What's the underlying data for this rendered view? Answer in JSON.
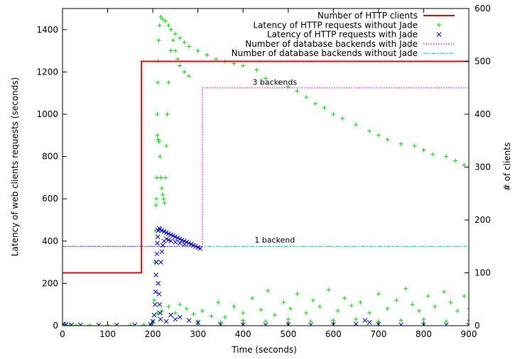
{
  "chart_data": {
    "type": "line",
    "title": "",
    "xlabel": "Time (seconds)",
    "ylabel": "Latency of web clients requests (seconds)",
    "y2label": "# of clients",
    "xlim": [
      0,
      900
    ],
    "ylim": [
      0,
      1500
    ],
    "y2lim": [
      0,
      600
    ],
    "xticks": [
      0,
      100,
      200,
      300,
      400,
      500,
      600,
      700,
      800,
      900
    ],
    "yticks": [
      0,
      200,
      400,
      600,
      800,
      1000,
      1200,
      1400
    ],
    "y2ticks": [
      0,
      100,
      200,
      300,
      400,
      500,
      600
    ],
    "grid": false,
    "legend_position": "top-right",
    "colors": {
      "clients": "#ff0000",
      "latency_without_jade": "#00dd00",
      "latency_with_jade": "#0000cc",
      "backends_with_jade": "#ee00ee",
      "backends_without_jade": "#00cccc"
    },
    "series": [
      {
        "name": "Number of HTTP clients",
        "axis": "y2",
        "style": "step",
        "x": [
          0,
          175,
          175,
          900
        ],
        "y": [
          100,
          100,
          500,
          500
        ]
      },
      {
        "name": "Latency of HTTP requests without Jade",
        "axis": "y",
        "style": "plus-points",
        "points": [
          [
            5,
            5
          ],
          [
            15,
            3
          ],
          [
            30,
            2
          ],
          [
            60,
            2
          ],
          [
            100,
            2
          ],
          [
            150,
            2
          ],
          [
            180,
            3
          ],
          [
            195,
            5
          ],
          [
            200,
            20
          ],
          [
            203,
            120
          ],
          [
            205,
            300
          ],
          [
            206,
            450
          ],
          [
            207,
            570
          ],
          [
            208,
            600
          ],
          [
            209,
            700
          ],
          [
            210,
            900
          ],
          [
            210,
            1000
          ],
          [
            211,
            1150
          ],
          [
            212,
            1250
          ],
          [
            213,
            1350
          ],
          [
            215,
            1420
          ],
          [
            218,
            1460
          ],
          [
            222,
            1450
          ],
          [
            228,
            1440
          ],
          [
            235,
            1420
          ],
          [
            240,
            1400
          ],
          [
            250,
            1380
          ],
          [
            260,
            1360
          ],
          [
            270,
            1340
          ],
          [
            280,
            1320
          ],
          [
            300,
            1300
          ],
          [
            320,
            1280
          ],
          [
            340,
            1260
          ],
          [
            360,
            1250
          ],
          [
            380,
            1240
          ],
          [
            400,
            1230
          ],
          [
            430,
            1210
          ],
          [
            450,
            1170
          ],
          [
            480,
            1150
          ],
          [
            500,
            1130
          ],
          [
            520,
            1110
          ],
          [
            540,
            1080
          ],
          [
            560,
            1050
          ],
          [
            580,
            1030
          ],
          [
            600,
            1000
          ],
          [
            620,
            980
          ],
          [
            650,
            950
          ],
          [
            680,
            920
          ],
          [
            700,
            900
          ],
          [
            720,
            880
          ],
          [
            750,
            860
          ],
          [
            780,
            850
          ],
          [
            800,
            830
          ],
          [
            820,
            810
          ],
          [
            850,
            800
          ],
          [
            870,
            780
          ],
          [
            890,
            760
          ],
          [
            900,
            750
          ],
          [
            212,
            880
          ],
          [
            214,
            870
          ],
          [
            216,
            800
          ],
          [
            218,
            700
          ],
          [
            220,
            650
          ],
          [
            222,
            620
          ],
          [
            224,
            600
          ],
          [
            226,
            580
          ],
          [
            228,
            700
          ],
          [
            230,
            850
          ],
          [
            232,
            1000
          ],
          [
            235,
            1150
          ],
          [
            240,
            1300
          ],
          [
            245,
            1350
          ],
          [
            250,
            1300
          ],
          [
            255,
            1260
          ],
          [
            260,
            1230
          ],
          [
            270,
            1200
          ],
          [
            280,
            1180
          ],
          [
            210,
            60
          ],
          [
            220,
            70
          ],
          [
            235,
            90
          ],
          [
            250,
            60
          ],
          [
            260,
            100
          ],
          [
            275,
            80
          ],
          [
            290,
            55
          ],
          [
            310,
            70
          ],
          [
            330,
            45
          ],
          [
            345,
            110
          ],
          [
            360,
            40
          ],
          [
            380,
            90
          ],
          [
            400,
            60
          ],
          [
            420,
            130
          ],
          [
            440,
            75
          ],
          [
            455,
            165
          ],
          [
            470,
            50
          ],
          [
            490,
            110
          ],
          [
            505,
            80
          ],
          [
            520,
            150
          ],
          [
            540,
            60
          ],
          [
            555,
            120
          ],
          [
            570,
            90
          ],
          [
            590,
            170
          ],
          [
            610,
            70
          ],
          [
            625,
            130
          ],
          [
            640,
            95
          ],
          [
            660,
            110
          ],
          [
            680,
            60
          ],
          [
            700,
            150
          ],
          [
            720,
            80
          ],
          [
            740,
            120
          ],
          [
            760,
            175
          ],
          [
            775,
            100
          ],
          [
            790,
            70
          ],
          [
            810,
            140
          ],
          [
            825,
            90
          ],
          [
            845,
            160
          ],
          [
            860,
            110
          ],
          [
            875,
            70
          ],
          [
            890,
            140
          ],
          [
            900,
            80
          ],
          [
            300,
            20
          ],
          [
            350,
            15
          ],
          [
            400,
            25
          ],
          [
            450,
            20
          ],
          [
            500,
            30
          ],
          [
            550,
            20
          ],
          [
            600,
            25
          ],
          [
            650,
            30
          ],
          [
            700,
            20
          ],
          [
            750,
            25
          ],
          [
            800,
            30
          ],
          [
            850,
            20
          ],
          [
            900,
            25
          ]
        ]
      },
      {
        "name": "Latency of HTTP requests with Jade",
        "axis": "y",
        "style": "x-points",
        "points": [
          [
            2,
            8
          ],
          [
            8,
            6
          ],
          [
            20,
            4
          ],
          [
            40,
            3
          ],
          [
            80,
            3
          ],
          [
            120,
            3
          ],
          [
            160,
            3
          ],
          [
            195,
            5
          ],
          [
            200,
            20
          ],
          [
            203,
            50
          ],
          [
            205,
            100
          ],
          [
            206,
            160
          ],
          [
            207,
            240
          ],
          [
            208,
            300
          ],
          [
            209,
            340
          ],
          [
            210,
            390
          ],
          [
            211,
            420
          ],
          [
            212,
            450
          ],
          [
            214,
            460
          ],
          [
            216,
            455
          ],
          [
            220,
            450
          ],
          [
            225,
            445
          ],
          [
            230,
            440
          ],
          [
            235,
            435
          ],
          [
            240,
            430
          ],
          [
            245,
            425
          ],
          [
            250,
            420
          ],
          [
            255,
            415
          ],
          [
            260,
            410
          ],
          [
            265,
            405
          ],
          [
            270,
            400
          ],
          [
            275,
            395
          ],
          [
            280,
            390
          ],
          [
            285,
            385
          ],
          [
            290,
            380
          ],
          [
            295,
            375
          ],
          [
            300,
            370
          ],
          [
            305,
            365
          ],
          [
            212,
            200
          ],
          [
            214,
            150
          ],
          [
            215,
            100
          ],
          [
            216,
            60
          ],
          [
            217,
            30
          ],
          [
            218,
            300
          ],
          [
            220,
            350
          ],
          [
            222,
            380
          ],
          [
            225,
            400
          ],
          [
            230,
            410
          ],
          [
            235,
            405
          ],
          [
            240,
            400
          ],
          [
            250,
            395
          ],
          [
            260,
            390
          ],
          [
            270,
            385
          ],
          [
            230,
            20
          ],
          [
            240,
            50
          ],
          [
            250,
            30
          ],
          [
            260,
            40
          ],
          [
            280,
            25
          ],
          [
            300,
            15
          ],
          [
            350,
            5
          ],
          [
            400,
            4
          ],
          [
            450,
            4
          ],
          [
            500,
            5
          ],
          [
            550,
            4
          ],
          [
            600,
            5
          ],
          [
            650,
            8
          ],
          [
            670,
            25
          ],
          [
            680,
            15
          ],
          [
            700,
            6
          ],
          [
            750,
            4
          ],
          [
            800,
            4
          ],
          [
            850,
            4
          ],
          [
            900,
            3
          ]
        ]
      },
      {
        "name": "Number of database backends with Jade",
        "axis": "y",
        "style": "dotted-step",
        "x": [
          0,
          310,
          310,
          900
        ],
        "y": [
          375,
          375,
          1125,
          1125
        ]
      },
      {
        "name": "Number of database backends without Jade",
        "axis": "y",
        "style": "dash-dot",
        "x": [
          0,
          900
        ],
        "y": [
          375,
          375
        ]
      }
    ],
    "annotations": [
      {
        "text": "3 backends",
        "x": 470,
        "y": 1140
      },
      {
        "text": "1 backend",
        "x": 470,
        "y": 392
      }
    ]
  }
}
